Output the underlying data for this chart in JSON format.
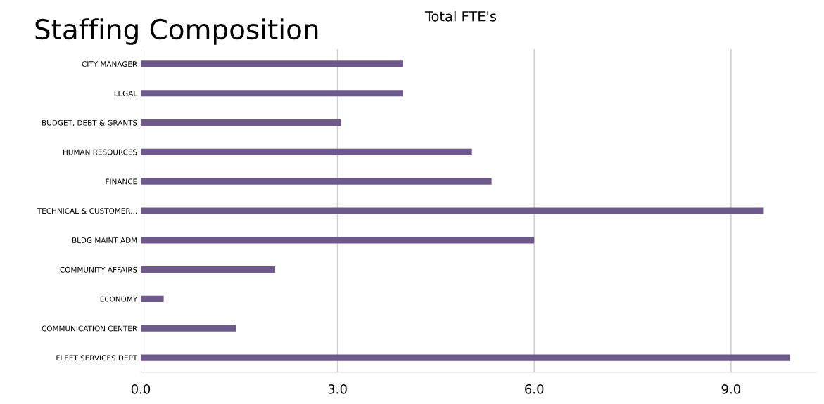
{
  "chart_data": {
    "type": "bar",
    "orientation": "horizontal",
    "title": "Staffing Composition",
    "subtitle": "Total FTE's",
    "categories": [
      "CITY MANAGER",
      "LEGAL",
      "BUDGET, DEBT & GRANTS",
      "HUMAN RESOURCES",
      "FINANCE",
      "TECHNICAL & CUSTOMER...",
      "BLDG MAINT ADM",
      "COMMUNITY AFFAIRS",
      "ECONOMY",
      "COMMUNICATION CENTER",
      "FLEET SERVICES DEPT"
    ],
    "values": [
      4.0,
      4.0,
      3.05,
      5.05,
      5.35,
      9.5,
      6.0,
      2.05,
      0.35,
      1.45,
      9.9
    ],
    "color": "#6e5a8a",
    "xlim": [
      0,
      10.3
    ],
    "xticks": [
      {
        "value": 0,
        "label": "0.0"
      },
      {
        "value": 3,
        "label": "3.0"
      },
      {
        "value": 6,
        "label": "6.0"
      },
      {
        "value": 9,
        "label": "9.0"
      }
    ],
    "grid": "x"
  }
}
